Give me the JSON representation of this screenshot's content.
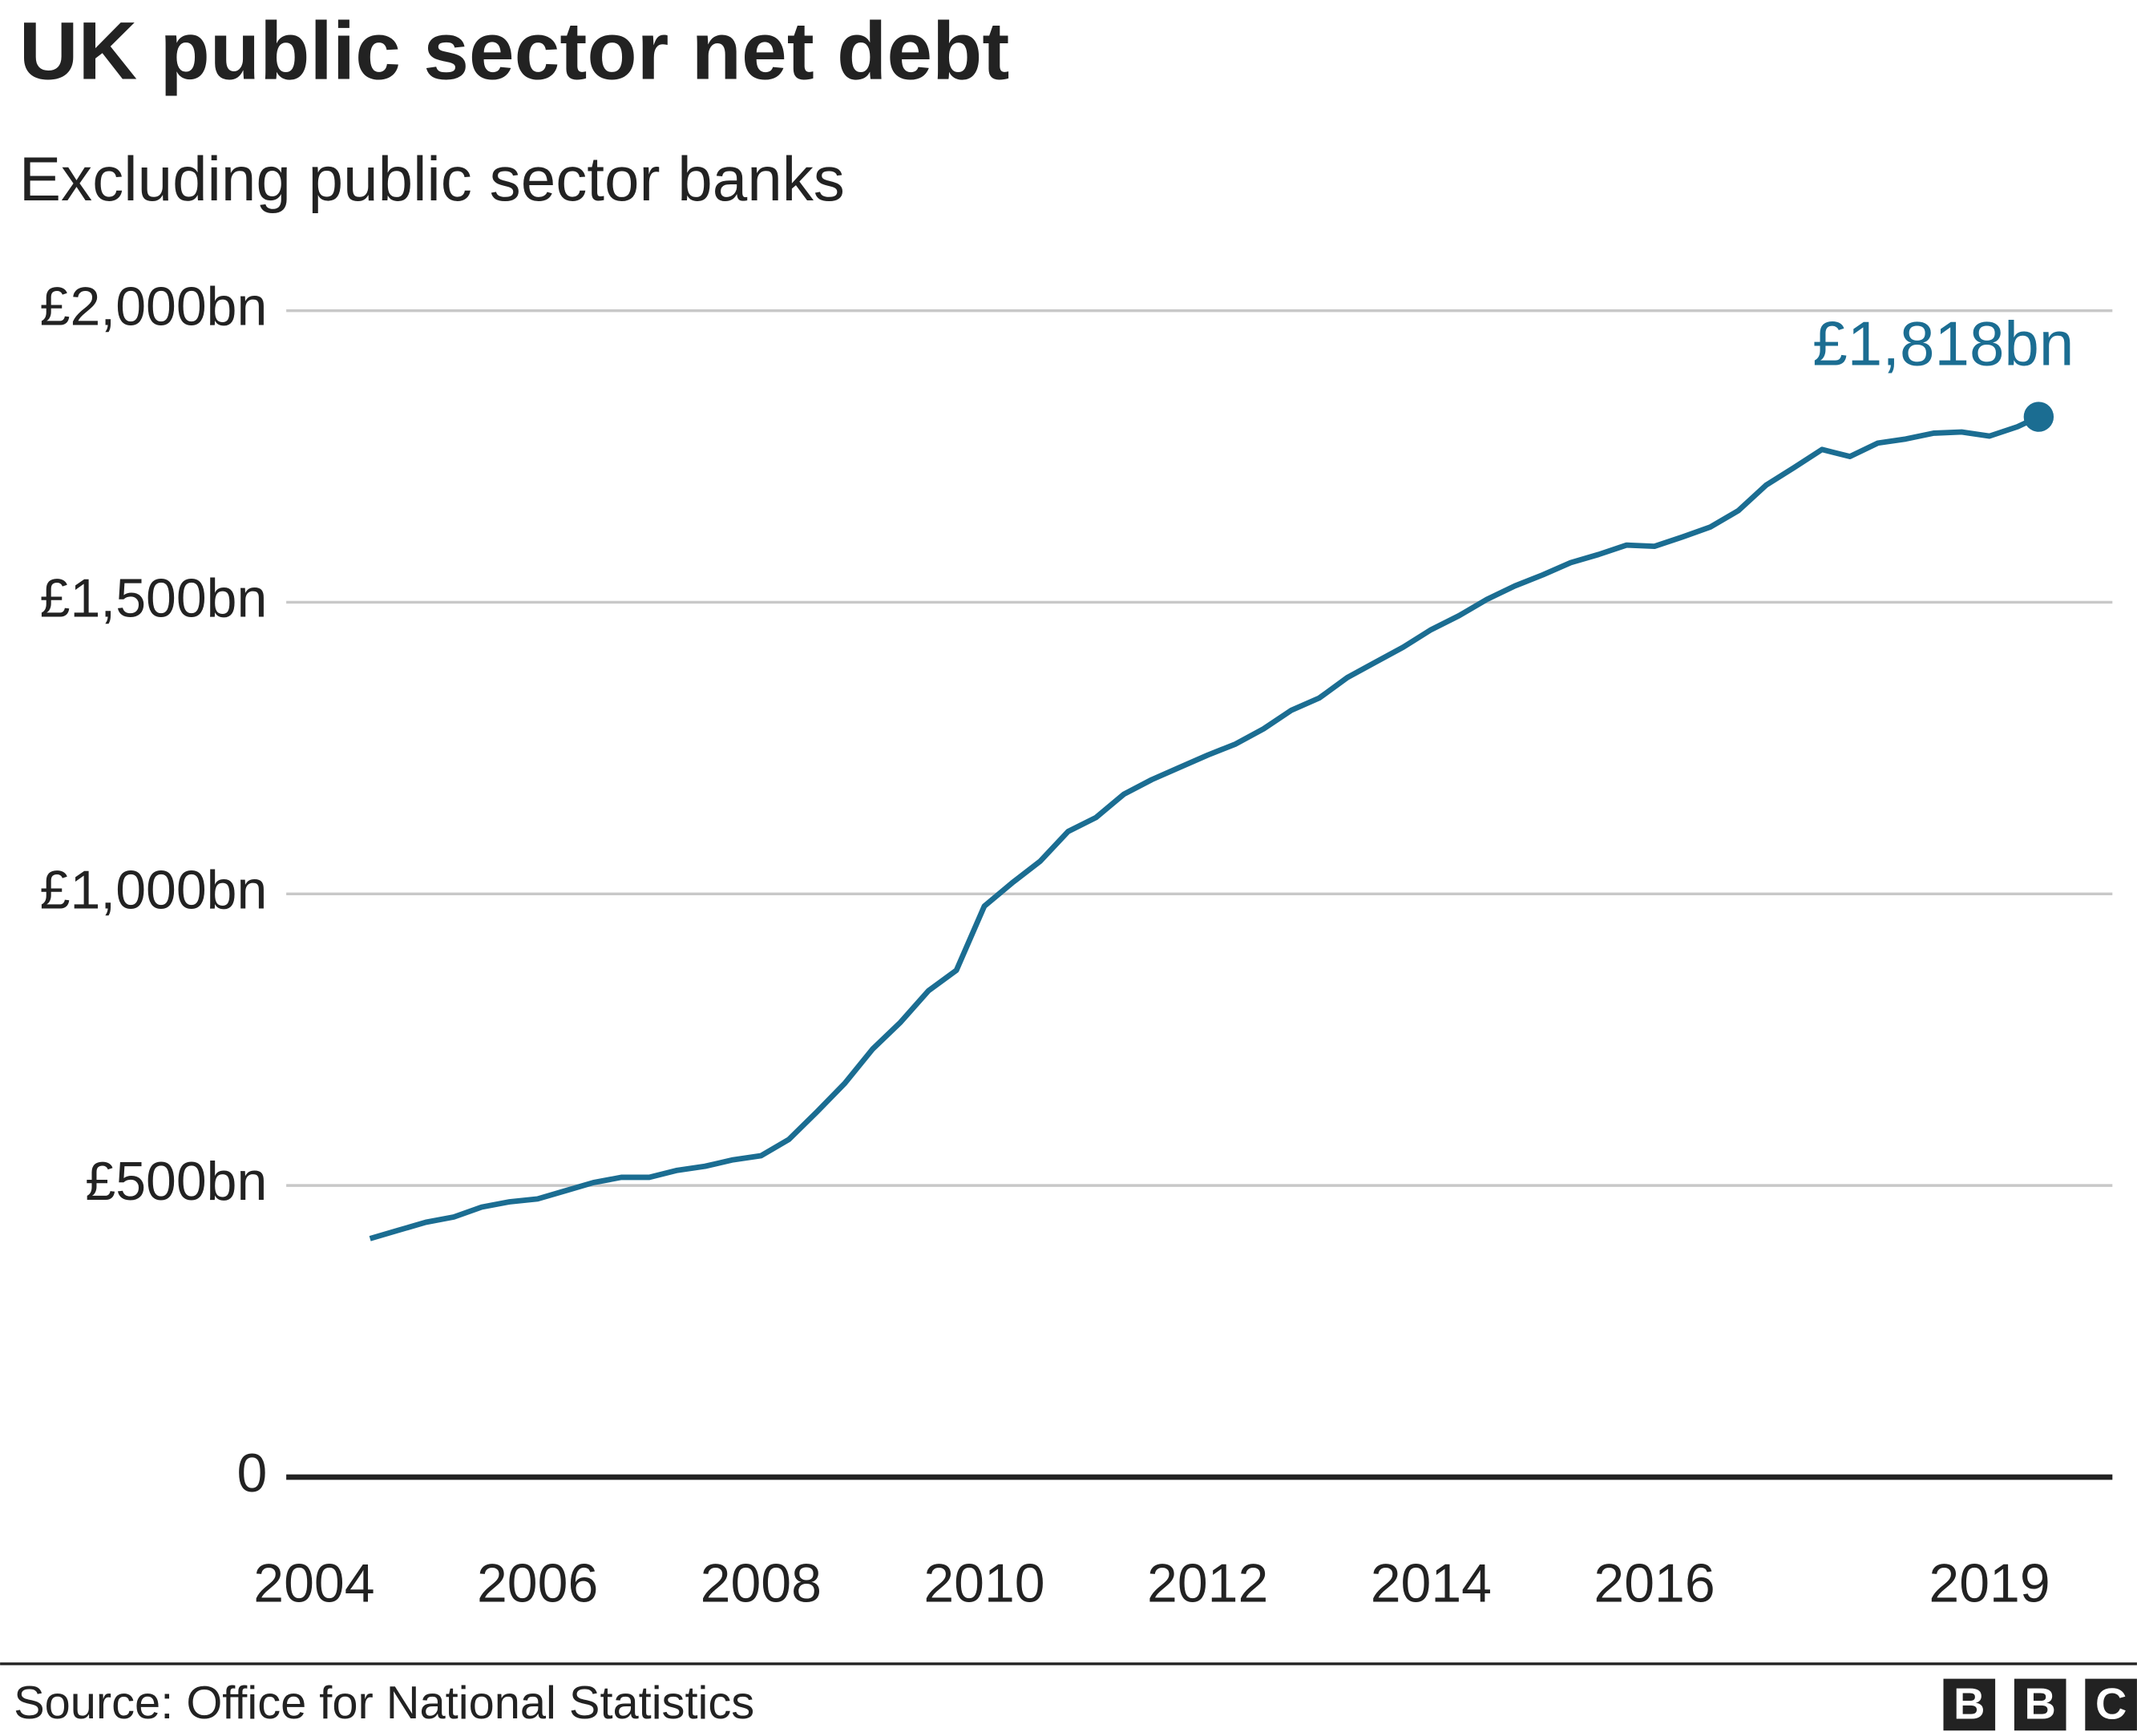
{
  "chart_data": {
    "type": "line",
    "title": "UK public sector net debt",
    "subtitle": "Excluding public sector banks",
    "source": "Source: Office for National Statistics",
    "logo": [
      "B",
      "B",
      "C"
    ],
    "x": [
      2004.5,
      2004.75,
      2005.0,
      2005.25,
      2005.5,
      2005.75,
      2006.0,
      2006.25,
      2006.5,
      2006.75,
      2007.0,
      2007.25,
      2007.5,
      2007.75,
      2008.0,
      2008.25,
      2008.5,
      2008.75,
      2009.0,
      2009.25,
      2009.5,
      2009.75,
      2010.0,
      2010.25,
      2010.5,
      2010.75,
      2011.0,
      2011.25,
      2011.5,
      2011.75,
      2012.0,
      2012.25,
      2012.5,
      2012.75,
      2013.0,
      2013.25,
      2013.5,
      2013.75,
      2014.0,
      2014.25,
      2014.5,
      2014.75,
      2015.0,
      2015.25,
      2015.5,
      2015.75,
      2016.0,
      2016.25,
      2016.5,
      2016.75,
      2017.0,
      2017.25,
      2017.5,
      2017.75,
      2018.0,
      2018.25,
      2018.5,
      2018.75,
      2019.0,
      2019.25,
      2019.44
    ],
    "series": [
      {
        "color": "#1b6d92",
        "values": [
          409,
          423,
          437,
          446,
          463,
          472,
          477,
          491,
          505,
          514,
          514,
          526,
          533,
          544,
          551,
          579,
          626,
          675,
          734,
          780,
          834,
          869,
          979,
          1019,
          1056,
          1107,
          1131,
          1171,
          1196,
          1217,
          1238,
          1257,
          1283,
          1315,
          1336,
          1371,
          1397,
          1423,
          1453,
          1477,
          1505,
          1528,
          1547,
          1568,
          1582,
          1598,
          1596,
          1612,
          1629,
          1657,
          1701,
          1731,
          1762,
          1750,
          1773,
          1780,
          1790,
          1792,
          1785,
          1801,
          1818
        ],
        "value_labels": [
          null,
          null,
          null,
          null,
          null,
          null,
          null,
          null,
          null,
          null,
          null,
          null,
          null,
          null,
          null,
          null,
          null,
          null,
          null,
          null,
          null,
          null,
          null,
          null,
          null,
          null,
          null,
          null,
          null,
          null,
          null,
          null,
          null,
          null,
          null,
          null,
          null,
          null,
          null,
          null,
          null,
          null,
          null,
          null,
          null,
          null,
          null,
          null,
          null,
          null,
          null,
          null,
          null,
          null,
          null,
          null,
          null,
          null,
          null,
          null,
          "£1,818bn"
        ]
      }
    ],
    "xlim": [
      2003.75,
      2020.1
    ],
    "xticks": [
      2004,
      2006,
      2008,
      2010,
      2012,
      2014,
      2016,
      2019
    ],
    "ylim": [
      0,
      2000
    ],
    "yticks": [
      0,
      {
        "value": 500,
        "label": "£500bn"
      },
      {
        "value": 1000,
        "label": "£1,000bn"
      },
      {
        "value": 1500,
        "label": "£1,500bn"
      },
      {
        "value": 2000,
        "label": "£2,000bn"
      }
    ],
    "grid": true
  }
}
